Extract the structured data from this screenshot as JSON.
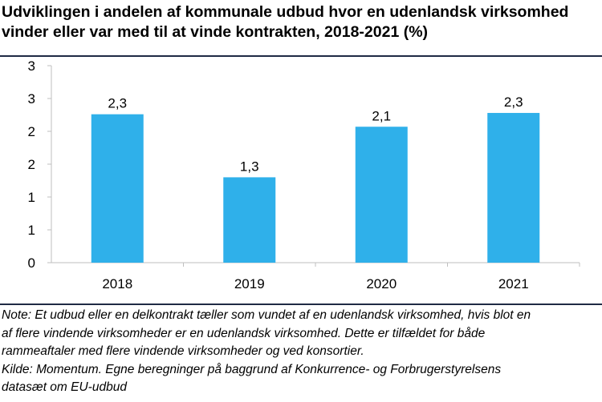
{
  "title_line1": "Udviklingen i andelen af kommunale udbud hvor en udenlandsk virksomhed",
  "title_line2": "vinder eller var med til at vinde kontrakten, 2018-2021 (%)",
  "notes": {
    "line1": "Note: Et udbud eller en delkontrakt tæller som vundet af en udenlandsk virksomhed, hvis blot en",
    "line2": "af flere vindende virksomheder er en udenlandsk virksomhed. Dette er tilfældet for både",
    "line3": "rammeaftaler med flere vindende virksomheder og ved konsortier.",
    "line4": "Kilde: Momentum. Egne beregninger på baggrund af Konkurrence- og Forbrugerstyrelsens",
    "line5": "datasæt om EU-udbud"
  },
  "chart_data": {
    "type": "bar",
    "categories": [
      "2018",
      "2019",
      "2020",
      "2021"
    ],
    "values": [
      2.26,
      1.3,
      2.07,
      2.28
    ],
    "value_labels": [
      "2,3",
      "1,3",
      "2,1",
      "2,3"
    ],
    "ylim": [
      0,
      3
    ],
    "ytick_values": [
      0,
      0.5,
      1,
      1.5,
      2,
      2.5,
      3
    ],
    "ytick_labels": [
      "0",
      "1",
      "1",
      "2",
      "2",
      "3",
      "3"
    ],
    "grid": false,
    "bar_color": "#2fb0ea"
  }
}
